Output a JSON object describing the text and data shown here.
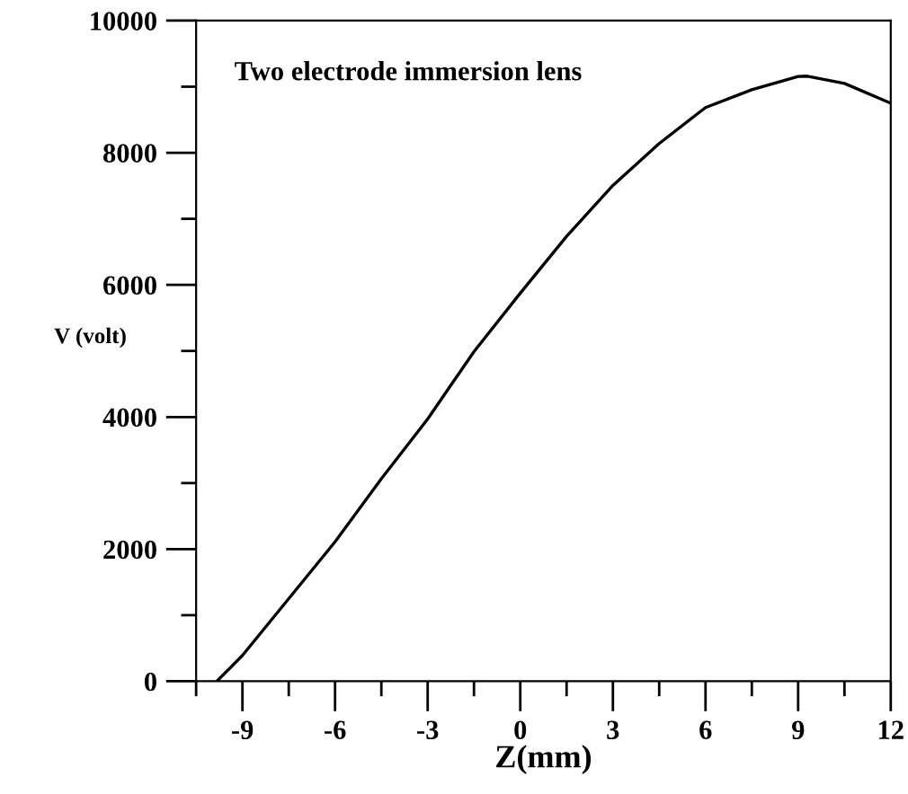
{
  "chart_data": {
    "type": "line",
    "xlabel": "Z(mm)",
    "ylabel": "V (volt)",
    "annotations": [
      "Two electrode immersion lens"
    ],
    "series": [
      {
        "color": "#000000",
        "x": [
          -9.83,
          -9,
          -7.5,
          -6,
          -4.5,
          -3,
          -1.5,
          0,
          1.5,
          3,
          4.5,
          6,
          7.5,
          9,
          9.3,
          10.5,
          12
        ],
        "values": [
          0,
          390,
          1250,
          2110,
          3065,
          3970,
          4990,
          5875,
          6735,
          7505,
          8140,
          8685,
          8955,
          9155,
          9160,
          9050,
          8750
        ]
      }
    ],
    "xlim": [
      -10.5,
      12
    ],
    "xticks": [
      -9,
      -6,
      -3,
      0,
      3,
      6,
      9,
      12
    ],
    "ylim": [
      0,
      10000
    ],
    "yticks": [
      0,
      2000,
      4000,
      6000,
      8000,
      10000
    ],
    "grid": false,
    "legend": false,
    "marker": "none",
    "line_style": "solid"
  }
}
